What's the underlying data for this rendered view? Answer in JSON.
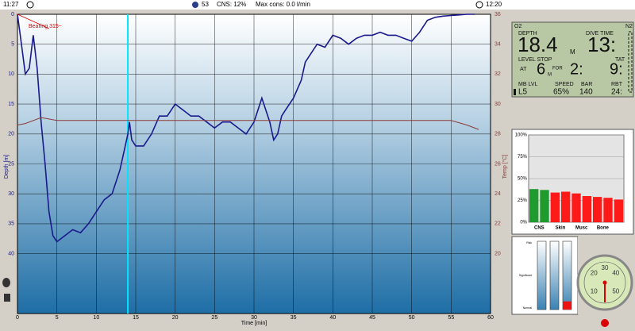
{
  "header": {
    "start_time": "11:27",
    "moon_value": "53",
    "cns": "CNS:  12%",
    "max_cons": "Max cons:  0.0 l/min",
    "end_time": "12:20"
  },
  "profile": {
    "type": "line",
    "x_label": "Time [min]",
    "y_label": "Depth [m]",
    "y2_label": "Temp [°C]",
    "annotation": "Bearing 315~",
    "xlim": [
      0,
      60
    ],
    "xticks": [
      0,
      5,
      10,
      15,
      20,
      25,
      30,
      35,
      40,
      45,
      50,
      55,
      60
    ],
    "ylim": [
      0,
      50
    ],
    "yticks": [
      0,
      5,
      10,
      15,
      20,
      25,
      30,
      35,
      40
    ],
    "y2lim": [
      36,
      16
    ],
    "y2ticks": [
      20,
      22,
      24,
      26,
      28,
      30,
      32,
      34,
      36
    ],
    "cursor_x": 14,
    "series": [
      {
        "name": "Depth",
        "color": "#1a1a8c",
        "x": [
          0,
          0.5,
          1,
          1.5,
          2,
          2.5,
          3,
          3.5,
          4,
          4.5,
          5,
          6,
          7,
          8,
          9,
          10,
          11,
          12,
          13,
          14,
          14.2,
          14.5,
          15,
          16,
          17,
          18,
          19,
          20,
          21,
          22,
          23,
          24,
          25,
          26,
          27,
          28,
          29,
          30,
          31,
          32,
          32.5,
          33,
          33.5,
          34,
          35,
          36,
          36.5,
          37,
          38,
          39,
          40,
          41,
          42,
          43,
          44,
          45,
          46,
          47,
          48,
          49,
          50,
          51,
          52,
          53,
          54,
          55,
          56,
          57,
          58
        ],
        "values": [
          0,
          5,
          10,
          9,
          3.5,
          9,
          18,
          25,
          33,
          37,
          38,
          37,
          36,
          36.5,
          35,
          33,
          31,
          30,
          26,
          20,
          18,
          21,
          22,
          22,
          20,
          17,
          17,
          15,
          16,
          17,
          17,
          18,
          19,
          18,
          18,
          19,
          20,
          18,
          14,
          18,
          21,
          20,
          17,
          16,
          14,
          11,
          8,
          7,
          5,
          5.5,
          3.5,
          4,
          5,
          4,
          3.5,
          3.5,
          3,
          3.5,
          3.5,
          4,
          4.5,
          3,
          1,
          0.5,
          0.3,
          0.2,
          0.1,
          0,
          0
        ]
      },
      {
        "name": "Temp",
        "color": "#8b3a3a",
        "axis": "y2",
        "x": [
          0,
          1,
          3,
          5,
          10,
          15,
          20,
          25,
          30,
          35,
          40,
          45,
          50,
          55,
          57,
          58.5
        ],
        "values": [
          28.6,
          28.7,
          29.1,
          28.9,
          28.9,
          28.9,
          28.9,
          28.9,
          28.9,
          28.9,
          28.9,
          28.9,
          28.9,
          28.9,
          28.6,
          28.3
        ]
      }
    ]
  },
  "computer": {
    "o2": "O2",
    "n2": "N2",
    "depth_label": "DEPTH",
    "depth": "18.4",
    "depth_unit": "M",
    "dive_time_label": "DIVE TIME",
    "dive_time": "13:",
    "level_stop": "LEVEL STOP",
    "tat_label": "TAT",
    "at": "AT",
    "stop_depth": "6",
    "stop_unit": "M",
    "for": "FOR",
    "stop_time": "2:",
    "tat": "9:",
    "mb_label": "MB LVL",
    "mb": "L5",
    "speed_label": "SPEED",
    "speed": "65%",
    "bar_label": "BAR",
    "bar": "140",
    "rbt_label": "RBT",
    "rbt": "24:"
  },
  "tissues": {
    "type": "bar",
    "categories": [
      "CNS",
      null,
      "Skin",
      null,
      "Musc",
      null,
      "Bone",
      null,
      null
    ],
    "values": [
      38,
      37,
      34,
      35,
      33,
      30,
      29,
      28,
      26
    ],
    "colors": [
      "#1f9a2f",
      "#1f9a2f",
      "#ff1a1a",
      "#ff1a1a",
      "#ff1a1a",
      "#ff1a1a",
      "#ff1a1a",
      "#ff1a1a",
      "#ff1a1a"
    ],
    "ylim": [
      0,
      100
    ],
    "yticks": [
      {
        "value": 0,
        "label": "0%"
      },
      {
        "value": 25,
        "label": "25%"
      },
      {
        "value": 50,
        "label": "50%"
      },
      {
        "value": 75,
        "label": "75%"
      },
      {
        "value": 100,
        "label": "100%"
      }
    ]
  },
  "gauges": {
    "levels": [
      "Risk",
      "Significant",
      "Normal"
    ],
    "ylim": [
      0,
      100
    ],
    "values": [
      0,
      0,
      12
    ]
  },
  "dial": {
    "labels": [
      "10",
      "20",
      "30",
      "40",
      "50"
    ]
  }
}
